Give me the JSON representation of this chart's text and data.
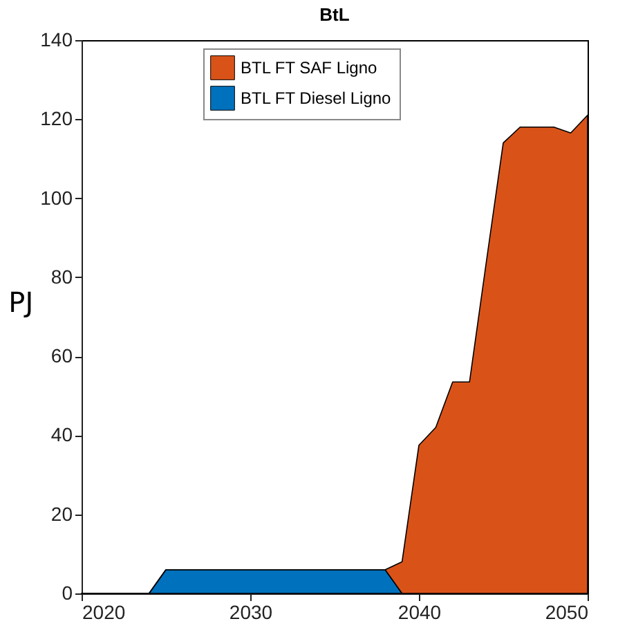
{
  "chart_data": {
    "type": "area",
    "title": "BtL",
    "ylabel": "PJ",
    "stacked": true,
    "x": [
      2020,
      2021,
      2022,
      2023,
      2024,
      2025,
      2026,
      2027,
      2028,
      2029,
      2030,
      2031,
      2032,
      2033,
      2034,
      2035,
      2036,
      2037,
      2038,
      2039,
      2040,
      2041,
      2042,
      2043,
      2044,
      2045,
      2046,
      2047,
      2048,
      2049,
      2050
    ],
    "series": [
      {
        "name": "BTL FT Diesel Ligno",
        "color": "#0072bd",
        "values": [
          0,
          0,
          0,
          0,
          0,
          6,
          6,
          6,
          6,
          6,
          6,
          6,
          6,
          6,
          6,
          6,
          6,
          6,
          6,
          0,
          0,
          0,
          0,
          0,
          0,
          0,
          0,
          0,
          0,
          0,
          0
        ]
      },
      {
        "name": "BTL FT SAF Ligno",
        "color": "#d95319",
        "values": [
          0,
          0,
          0,
          0,
          0,
          0,
          0,
          0,
          0,
          0,
          0,
          0,
          0,
          0,
          0,
          0,
          0,
          0,
          0,
          8,
          37.5,
          42,
          53.5,
          53.5,
          84,
          114,
          118,
          118,
          118,
          116.5,
          121
        ]
      }
    ],
    "xlim": [
      2020,
      2050
    ],
    "xticks": [
      2020,
      2030,
      2040,
      2050
    ],
    "ylim": [
      0,
      140
    ],
    "yticks": [
      0,
      20,
      40,
      60,
      80,
      100,
      120,
      140
    ],
    "grid": false,
    "legend": "top"
  }
}
